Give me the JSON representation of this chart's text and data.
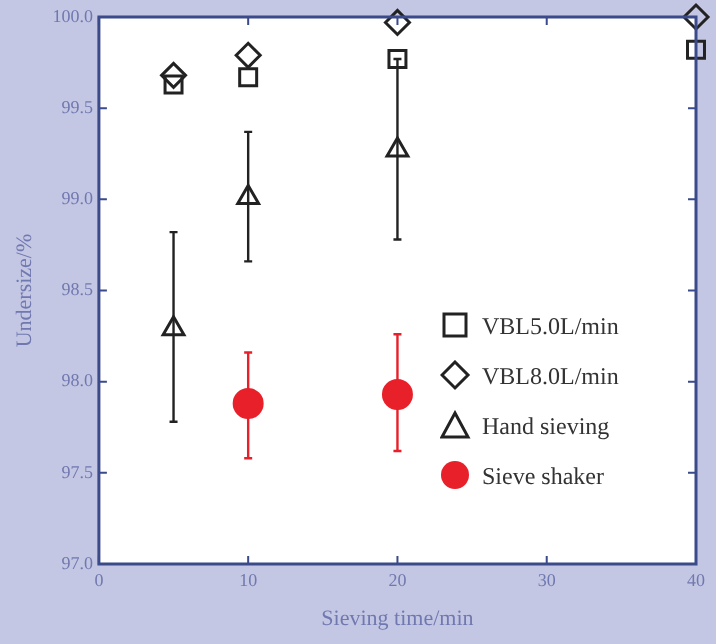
{
  "chart_data": {
    "type": "scatter",
    "xlabel": "Sieving time/min",
    "ylabel": "Undersize/%",
    "xlim": [
      0,
      40
    ],
    "xticks": [
      0,
      10,
      20,
      30,
      40
    ],
    "ylim": [
      97,
      100
    ],
    "yticks": [
      {
        "value": 97,
        "label": "97.0"
      },
      {
        "value": 97.5,
        "label": "97.5"
      },
      {
        "value": 98,
        "label": "98.0"
      },
      {
        "value": 98.5,
        "label": "98.5"
      },
      {
        "value": 99,
        "label": "99.0"
      },
      {
        "value": 99.5,
        "label": "99.5"
      },
      {
        "value": 100,
        "label": "100.0"
      }
    ],
    "grid": false,
    "legend": "right",
    "series": [
      {
        "name": "VBL5.0L/min",
        "color": "#222222",
        "marker": "square",
        "x": [
          5,
          10,
          20,
          40
        ],
        "values": [
          99.63,
          99.67,
          99.77,
          99.82
        ]
      },
      {
        "name": "VBL8.0L/min",
        "color": "#222222",
        "marker": "diamond",
        "x": [
          5,
          10,
          20,
          40
        ],
        "values": [
          99.68,
          99.79,
          99.97,
          100.0
        ]
      },
      {
        "name": "Hand sieving",
        "color": "#222222",
        "marker": "triangle",
        "x": [
          5,
          10,
          20
        ],
        "values": [
          98.29,
          99.01,
          99.27
        ],
        "errors": [
          [
            97.78,
            98.82
          ],
          [
            98.66,
            99.37
          ],
          [
            98.78,
            99.77
          ]
        ]
      },
      {
        "name": "Sieve shaker",
        "color": "#e8202a",
        "marker": "circle",
        "x": [
          10,
          20
        ],
        "values": [
          97.88,
          97.93
        ],
        "errors": [
          [
            97.58,
            98.16
          ],
          [
            97.62,
            98.26
          ]
        ]
      }
    ]
  }
}
